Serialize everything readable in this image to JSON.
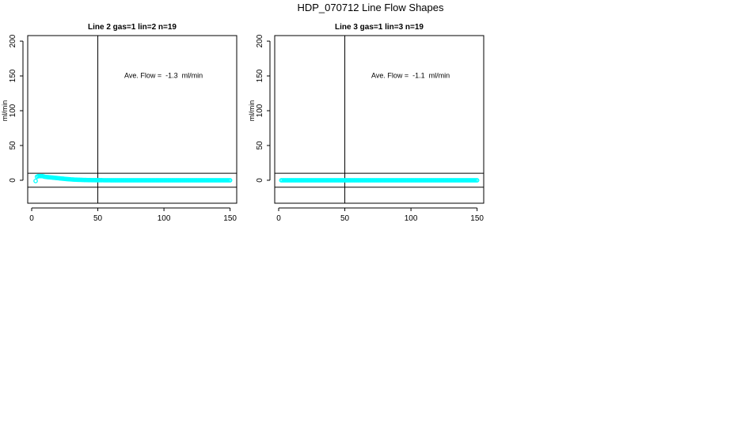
{
  "page_title": "HDP_070712  Line Flow Shapes",
  "colors": {
    "points": "#00ffff",
    "lines": "#000000",
    "background": "#ffffff"
  },
  "chart_data": [
    {
      "type": "scatter",
      "title": "Line 2 gas=1 lin=2 n=19",
      "ylabel": "ml/min",
      "xlabel": "",
      "xlim": [
        -3,
        155
      ],
      "ylim": [
        -33,
        208
      ],
      "xticks": [
        0,
        50,
        100,
        150
      ],
      "yticks": [
        0,
        50,
        100,
        150,
        200
      ],
      "reference_lines": {
        "vertical_x": 50,
        "horizontal_y": [
          10,
          -10
        ]
      },
      "annotation": "Ave. Flow =  -1.3  ml/min",
      "annotation_position": "top-right",
      "grid": false,
      "series": [
        {
          "x_start": 3,
          "x_end": 150,
          "x_step": 1,
          "points": [
            [
              3,
              -1
            ],
            [
              4,
              5
            ],
            [
              5,
              6
            ],
            [
              6,
              6
            ],
            [
              7,
              6
            ],
            [
              8,
              6
            ],
            [
              9,
              5.5
            ],
            [
              10,
              5
            ],
            [
              12,
              4.5
            ],
            [
              15,
              4
            ],
            [
              20,
              3
            ],
            [
              25,
              2
            ],
            [
              30,
              1.2
            ],
            [
              35,
              0.7
            ],
            [
              40,
              0.4
            ],
            [
              45,
              0.2
            ],
            [
              50,
              0.1
            ],
            [
              60,
              0
            ],
            [
              80,
              0
            ],
            [
              100,
              0
            ],
            [
              120,
              0
            ],
            [
              150,
              0
            ]
          ]
        }
      ]
    },
    {
      "type": "scatter",
      "title": "Line 3 gas=1 lin=3 n=19",
      "ylabel": "ml/min",
      "xlabel": "",
      "xlim": [
        -3,
        155
      ],
      "ylim": [
        -33,
        208
      ],
      "xticks": [
        0,
        50,
        100,
        150
      ],
      "yticks": [
        0,
        50,
        100,
        150,
        200
      ],
      "reference_lines": {
        "vertical_x": 50,
        "horizontal_y": [
          10,
          -10
        ]
      },
      "annotation": "Ave. Flow =  -1.1  ml/min",
      "annotation_position": "top-right",
      "grid": false,
      "series": [
        {
          "x_start": 2,
          "x_end": 150,
          "x_step": 1,
          "points": [
            [
              2,
              0
            ],
            [
              10,
              0
            ],
            [
              50,
              0
            ],
            [
              100,
              0
            ],
            [
              150,
              0
            ]
          ]
        }
      ]
    }
  ]
}
